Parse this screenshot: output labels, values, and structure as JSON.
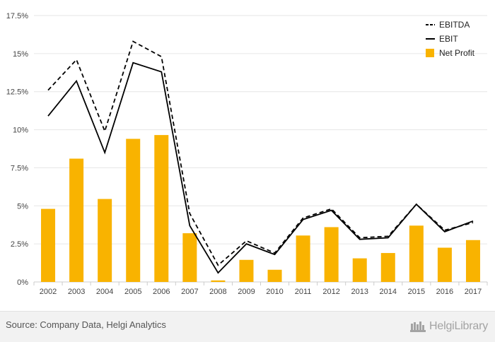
{
  "chart_data": {
    "type": "bar",
    "categories": [
      "2002",
      "2003",
      "2004",
      "2005",
      "2006",
      "2007",
      "2008",
      "2009",
      "2010",
      "2011",
      "2012",
      "2013",
      "2014",
      "2015",
      "2016",
      "2017"
    ],
    "series": [
      {
        "name": "EBITDA",
        "type": "line",
        "style": "dashed",
        "color": "#000000",
        "values": [
          12.6,
          14.6,
          9.9,
          15.8,
          14.8,
          4.5,
          1.1,
          2.7,
          1.9,
          4.2,
          4.8,
          2.9,
          3.0,
          5.1,
          3.4,
          3.9
        ]
      },
      {
        "name": "EBIT",
        "type": "line",
        "style": "solid",
        "color": "#000000",
        "values": [
          10.9,
          13.2,
          8.5,
          14.4,
          13.8,
          3.7,
          0.6,
          2.5,
          1.8,
          4.1,
          4.7,
          2.8,
          2.9,
          5.1,
          3.3,
          4.0
        ]
      },
      {
        "name": "Net Profit",
        "type": "bar",
        "color": "#F9B300",
        "values": [
          4.8,
          8.1,
          5.45,
          9.4,
          9.65,
          3.2,
          0.1,
          1.45,
          0.8,
          3.05,
          3.6,
          1.55,
          1.9,
          3.7,
          2.25,
          2.75
        ]
      }
    ],
    "y_ticks": [
      "0%",
      "2.5%",
      "5%",
      "7.5%",
      "10%",
      "12.5%",
      "15%",
      "17.5%"
    ],
    "y_tick_values": [
      0,
      2.5,
      5,
      7.5,
      10,
      12.5,
      15,
      17.5
    ],
    "ylim": [
      0,
      17.5
    ],
    "grid": true,
    "legend_position": "top-right"
  },
  "footer": {
    "source": "Source: Company Data, Helgi Analytics",
    "brand": "HelgiLibrary"
  }
}
